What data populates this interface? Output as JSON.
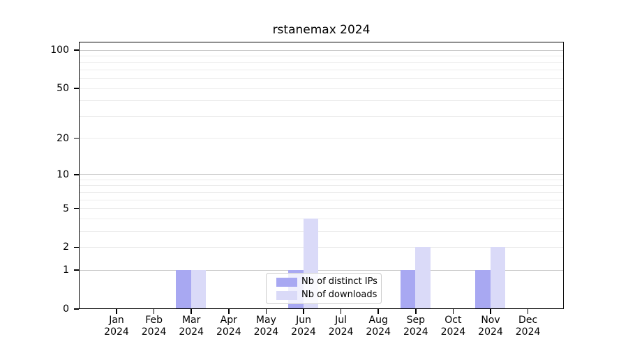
{
  "title": "rstanemax 2024",
  "colors": {
    "ips": "#a8a8f2",
    "downloads": "#dadaf8",
    "grid_major": "#c9c9c9",
    "grid_minor": "#ececec",
    "spine": "#000000",
    "legend_border": "#cccccc"
  },
  "legend": {
    "items": [
      {
        "label": "Nb of distinct IPs",
        "series": "ips"
      },
      {
        "label": "Nb of downloads",
        "series": "downloads"
      }
    ]
  },
  "axes": {
    "y_scale": "log1p",
    "y_ticks": [
      {
        "value": 100,
        "label": "100"
      },
      {
        "value": 50,
        "label": "50"
      },
      {
        "value": 20,
        "label": "20"
      },
      {
        "value": 10,
        "label": "10"
      },
      {
        "value": 5,
        "label": "5"
      },
      {
        "value": 2,
        "label": "2"
      },
      {
        "value": 1,
        "label": "1"
      },
      {
        "value": 0,
        "label": "0"
      }
    ],
    "y_minor_gridline_values": [
      2,
      3,
      4,
      5,
      6,
      7,
      8,
      9,
      20,
      30,
      40,
      50,
      60,
      70,
      80,
      90
    ],
    "y_major_gridline_values": [
      1,
      10,
      100
    ]
  },
  "chart_data": {
    "type": "bar",
    "title": "rstanemax 2024",
    "categories": [
      "Jan 2024",
      "Feb 2024",
      "Mar 2024",
      "Apr 2024",
      "May 2024",
      "Jun 2024",
      "Jul 2024",
      "Aug 2024",
      "Sep 2024",
      "Oct 2024",
      "Nov 2024",
      "Dec 2024"
    ],
    "series": [
      {
        "name": "Nb of distinct IPs",
        "values": [
          0,
          0,
          1,
          0,
          0,
          1,
          0,
          0,
          1,
          0,
          1,
          0
        ]
      },
      {
        "name": "Nb of downloads",
        "values": [
          0,
          0,
          1,
          0,
          0,
          4,
          0,
          0,
          2,
          0,
          2,
          0
        ]
      }
    ],
    "xlabel": "",
    "ylabel": "",
    "yscale": "log1p",
    "yticks": [
      0,
      1,
      2,
      5,
      10,
      20,
      50,
      100
    ],
    "ylim": [
      0,
      116
    ],
    "grid": "horizontal major+minor",
    "legend_position": "lower center"
  }
}
